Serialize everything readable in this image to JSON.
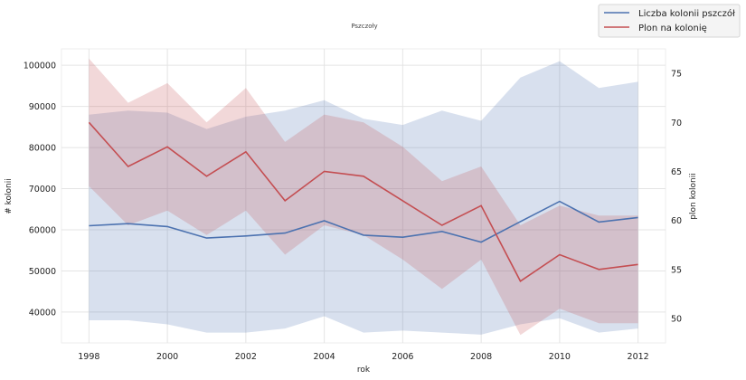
{
  "chart_data": {
    "type": "line",
    "title": "Pszczoły",
    "xlabel": "rok",
    "ylabel_left": "# kolonii",
    "ylabel_right": "plon kolonii",
    "x": [
      1998,
      1999,
      2000,
      2001,
      2002,
      2003,
      2004,
      2005,
      2006,
      2007,
      2008,
      2009,
      2010,
      2011,
      2012
    ],
    "xticks": [
      "1998",
      "2000",
      "2002",
      "2004",
      "2006",
      "2008",
      "2010",
      "2012"
    ],
    "xlim": [
      1997.3,
      2012.7
    ],
    "left_axis": {
      "ylim": [
        32500,
        104000
      ],
      "ticks": [
        "40000",
        "50000",
        "60000",
        "70000",
        "80000",
        "90000",
        "100000"
      ]
    },
    "right_axis": {
      "ylim": [
        47.5,
        77.5
      ],
      "ticks": [
        "50",
        "55",
        "60",
        "65",
        "70",
        "75"
      ]
    },
    "series": [
      {
        "name": "Liczba kolonii pszczół",
        "axis": "left",
        "color": "#4c72b0",
        "values": [
          61000,
          61500,
          60800,
          58000,
          58500,
          59200,
          62200,
          58700,
          58200,
          59600,
          57000,
          62000,
          66900,
          61900,
          63000
        ],
        "band_low": [
          38000,
          38000,
          37000,
          35000,
          35000,
          36000,
          39000,
          35000,
          35500,
          35000,
          34500,
          37000,
          38500,
          35000,
          36000
        ],
        "band_high": [
          88000,
          89000,
          88500,
          84500,
          87500,
          89000,
          91500,
          87000,
          85500,
          89000,
          86500,
          97000,
          101000,
          94500,
          96000
        ]
      },
      {
        "name": "Plon na kolonię",
        "axis": "right",
        "color": "#c44e52",
        "values": [
          70,
          65.5,
          67.5,
          64.5,
          67,
          62,
          65,
          64.5,
          62,
          59.5,
          61.5,
          53.8,
          56.5,
          55,
          55.5
        ],
        "band_low": [
          63.5,
          59.5,
          61,
          58.5,
          61,
          56.5,
          59.5,
          58.5,
          56,
          53,
          56,
          48.3,
          51,
          49.5,
          49.5
        ],
        "band_high": [
          76.5,
          72,
          74,
          70,
          73.5,
          68,
          70.8,
          70,
          67.5,
          64,
          65.5,
          59.5,
          61.5,
          60.5,
          60.5
        ]
      }
    ],
    "grid": true,
    "legend": "top-right"
  }
}
